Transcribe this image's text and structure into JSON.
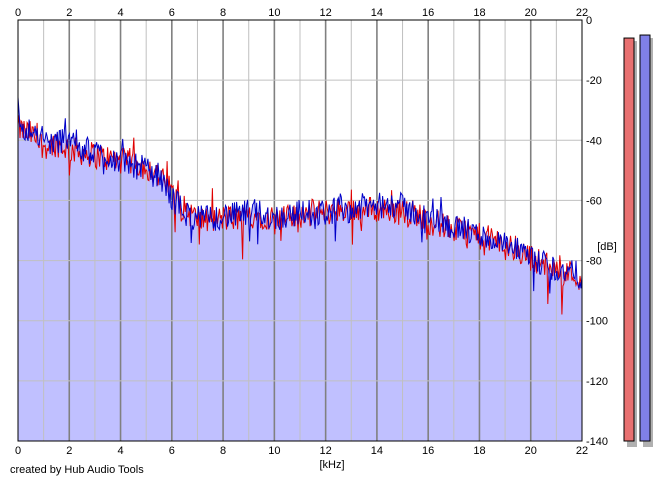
{
  "chart_data": {
    "type": "area",
    "xlabel": "[kHz]",
    "ylabel": "[dB]",
    "xlim": [
      0,
      22
    ],
    "ylim": [
      -140,
      0
    ],
    "x_ticks": [
      "0",
      "2",
      "4",
      "6",
      "8",
      "10",
      "12",
      "14",
      "16",
      "18",
      "20",
      "22"
    ],
    "y_ticks": [
      "0",
      "-20",
      "-40",
      "-60",
      "-80",
      "-100",
      "-120",
      "-140"
    ],
    "grid": true,
    "colors": {
      "fill": "#c0c0ff",
      "channel_red": "#e00000",
      "channel_blue": "#0000c8",
      "grid_minor": "#c0c0c0",
      "grid_major": "#808080",
      "meter_red": "#e87070",
      "meter_blue": "#8080e8"
    },
    "series": [
      {
        "channel": "red",
        "x": [
          0,
          0.5,
          1,
          1.5,
          2,
          2.5,
          3,
          3.5,
          4,
          4.5,
          5,
          5.5,
          6,
          6.5,
          7,
          7.5,
          8,
          8.5,
          9,
          9.5,
          10,
          10.5,
          11,
          11.5,
          12,
          12.5,
          13,
          13.5,
          14,
          14.5,
          15,
          15.5,
          16,
          16.5,
          17,
          17.5,
          18,
          18.5,
          19,
          19.5,
          20,
          20.5,
          21,
          21.5,
          22
        ],
        "y": [
          -36,
          -38,
          -42,
          -41,
          -43,
          -44,
          -45,
          -46,
          -47,
          -47,
          -49,
          -52,
          -57,
          -63,
          -66,
          -67,
          -66,
          -66,
          -65,
          -65,
          -66,
          -66,
          -65,
          -64,
          -64,
          -63,
          -63,
          -63,
          -63,
          -63,
          -64,
          -64,
          -67,
          -68,
          -70,
          -70,
          -72,
          -73,
          -75,
          -77,
          -79,
          -81,
          -83,
          -84,
          -86
        ]
      },
      {
        "channel": "blue",
        "x": [
          0,
          0.5,
          1,
          1.5,
          2,
          2.5,
          3,
          3.5,
          4,
          4.5,
          5,
          5.5,
          6,
          6.5,
          7,
          7.5,
          8,
          8.5,
          9,
          9.5,
          10,
          10.5,
          11,
          11.5,
          12,
          12.5,
          13,
          13.5,
          14,
          14.5,
          15,
          15.5,
          16,
          16.5,
          17,
          17.5,
          18,
          18.5,
          19,
          19.5,
          20,
          20.5,
          21,
          21.5,
          22
        ],
        "y": [
          -34,
          -37,
          -40,
          -41,
          -38,
          -43,
          -44,
          -45,
          -47,
          -48,
          -50,
          -52,
          -59,
          -64,
          -66,
          -66,
          -65,
          -65,
          -64,
          -64,
          -66,
          -65,
          -64,
          -64,
          -64,
          -63,
          -63,
          -62,
          -62,
          -61,
          -62,
          -64,
          -66,
          -67,
          -69,
          -70,
          -72,
          -73,
          -75,
          -77,
          -80,
          -81,
          -83,
          -84,
          -85
        ]
      }
    ],
    "level_meters": [
      {
        "channel": "red",
        "level": -6
      },
      {
        "channel": "blue",
        "level": -5
      }
    ]
  },
  "footer": {
    "credit": "created by Hub Audio Tools"
  }
}
